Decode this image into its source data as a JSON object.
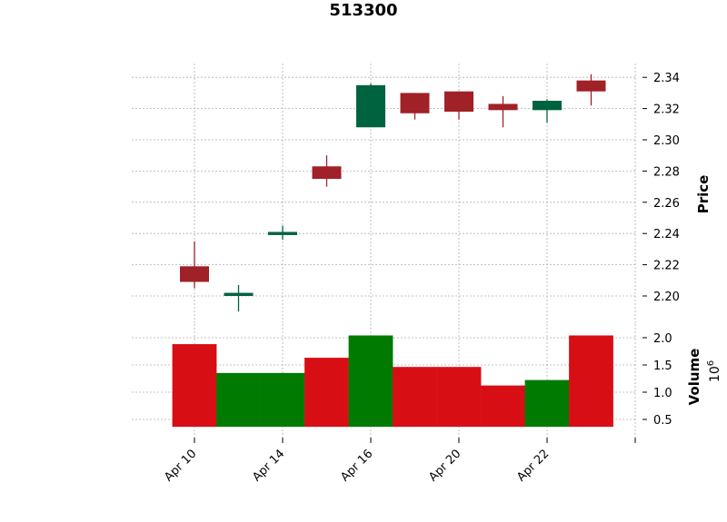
{
  "colors": {
    "candle_up": "#006340",
    "candle_down": "#A02128",
    "volume_up": "#007A00",
    "volume_down": "#D70F14",
    "grid": "#b0b0b0"
  },
  "chart_data": {
    "type": "candlestick",
    "title": "513300",
    "ylabel": "Price",
    "volume_label": "Volume",
    "volume_exponent_label": "10",
    "volume_exponent_power": "6",
    "price_ylim": [
      2.19,
      2.35
    ],
    "volume_ylim": [
      0.35,
      2.15
    ],
    "price_ticks": [
      "2.20",
      "2.22",
      "2.24",
      "2.26",
      "2.28",
      "2.30",
      "2.32",
      "2.34"
    ],
    "volume_ticks": [
      "0.5",
      "1.0",
      "1.5",
      "2.0"
    ],
    "x_tick_labels": [
      "Apr 10",
      "Apr 14",
      "Apr 16",
      "Apr 20",
      "Apr 22"
    ],
    "grid": true,
    "candles": [
      {
        "open": 2.219,
        "high": 2.235,
        "low": 2.205,
        "close": 2.209,
        "volume": 1.88
      },
      {
        "open": 2.2,
        "high": 2.207,
        "low": 2.19,
        "close": 2.202,
        "volume": 1.35
      },
      {
        "open": 2.239,
        "high": 2.245,
        "low": 2.236,
        "close": 2.241,
        "volume": 1.35
      },
      {
        "open": 2.283,
        "high": 2.29,
        "low": 2.27,
        "close": 2.275,
        "volume": 1.63
      },
      {
        "open": 2.308,
        "high": 2.336,
        "low": 2.308,
        "close": 2.335,
        "volume": 2.04
      },
      {
        "open": 2.33,
        "high": 2.33,
        "low": 2.313,
        "close": 2.317,
        "volume": 1.46
      },
      {
        "open": 2.331,
        "high": 2.331,
        "low": 2.313,
        "close": 2.318,
        "volume": 1.46
      },
      {
        "open": 2.323,
        "high": 2.328,
        "low": 2.308,
        "close": 2.319,
        "volume": 1.12
      },
      {
        "open": 2.319,
        "high": 2.326,
        "low": 2.311,
        "close": 2.325,
        "volume": 1.22
      },
      {
        "open": 2.338,
        "high": 2.342,
        "low": 2.322,
        "close": 2.331,
        "volume": 2.04
      }
    ]
  }
}
